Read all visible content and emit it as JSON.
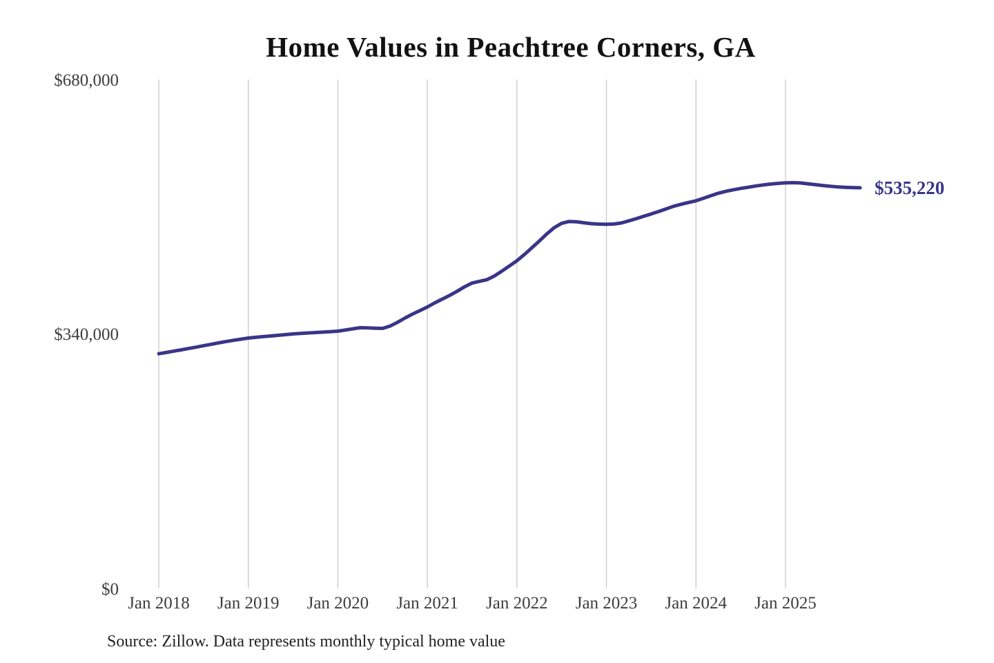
{
  "chart": {
    "title": "Home Values in Peachtree Corners, GA",
    "source_note": "Source: Zillow. Data represents monthly typical home value",
    "end_label": "$535,220",
    "colors": {
      "line": "#3b3588",
      "grid": "#c9c9c9",
      "axis_text": "#3d3d3d",
      "title_text": "#121212",
      "source_text": "#222222",
      "end_label_text": "#3b3588",
      "background": "#ffffff"
    }
  },
  "chart_data": {
    "type": "line",
    "title": "Home Values in Peachtree Corners, GA",
    "series_name": "Monthly typical home value (USD)",
    "source": "Source: Zillow. Data represents monthly typical home value",
    "start_month": "2018-01",
    "frequency": "monthly",
    "x_tick_labels": [
      "Jan 2018",
      "Jan 2019",
      "Jan 2020",
      "Jan 2021",
      "Jan 2022",
      "Jan 2023",
      "Jan 2024",
      "Jan 2025"
    ],
    "y_tick_labels": [
      "$0",
      "$340,000",
      "$680,000"
    ],
    "y_ticks": [
      0,
      340000,
      680000
    ],
    "ylim": [
      0,
      680000
    ],
    "grid": "vertical-only",
    "legend": "none",
    "last_value_label": "$535,220",
    "last_value": 535220,
    "values": [
      313500,
      315200,
      317000,
      318700,
      320500,
      322300,
      324200,
      326100,
      328000,
      329800,
      331400,
      333000,
      334500,
      335500,
      336400,
      337200,
      338200,
      339100,
      340000,
      340700,
      341300,
      341800,
      342400,
      343000,
      343700,
      345200,
      346800,
      348300,
      348100,
      347700,
      347400,
      350500,
      355500,
      361200,
      366500,
      371200,
      376000,
      381500,
      386500,
      391500,
      397000,
      403000,
      408000,
      410300,
      412500,
      417500,
      424000,
      430800,
      437700,
      446000,
      455000,
      464000,
      473500,
      482000,
      487800,
      490200,
      489800,
      488500,
      487300,
      486700,
      486500,
      486800,
      488200,
      491000,
      494000,
      497200,
      500300,
      503600,
      507000,
      510500,
      513200,
      515600,
      517800,
      521200,
      524600,
      527900,
      530400,
      532600,
      534400,
      536000,
      537600,
      539000,
      540200,
      541100,
      541800,
      542100,
      541700,
      540600,
      539400,
      538300,
      537300,
      536400,
      535900,
      535500,
      535220
    ]
  }
}
